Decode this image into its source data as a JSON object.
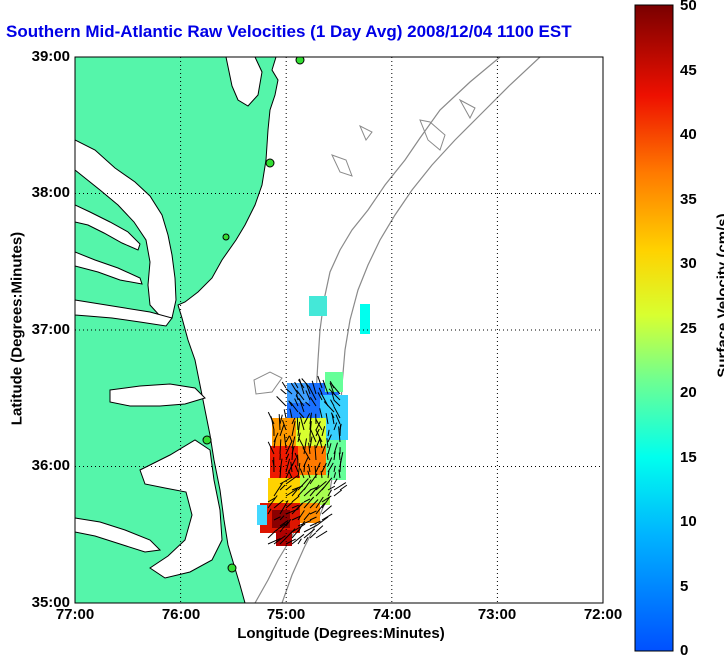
{
  "title": "Southern Mid-Atlantic Raw Velocities (1 Day Avg) 2008/12/04 1100 EST",
  "axes": {
    "xlabel": "Longitude (Degrees:Minutes)",
    "ylabel": "Latitude (Degrees:Minutes)",
    "x_ticks": [
      "77:00",
      "76:00",
      "75:00",
      "74:00",
      "73:00",
      "72:00"
    ],
    "y_ticks": [
      "39:00",
      "38:00",
      "37:00",
      "36:00",
      "35:00"
    ],
    "xlim": [
      -77,
      -72
    ],
    "ylim": [
      35,
      39
    ],
    "grid": "dotted"
  },
  "colorbar": {
    "label": "Surface Velocity (cm/s)",
    "ticks": [
      "50",
      "45",
      "40",
      "35",
      "30",
      "25",
      "20",
      "15",
      "10",
      "5",
      "0"
    ],
    "range": [
      0,
      50
    ],
    "colormap": "jet"
  },
  "colors": {
    "title": "#0000e6",
    "land": "#55f5aa",
    "contour": "#8a8a8a",
    "station": "#33dd33"
  }
}
